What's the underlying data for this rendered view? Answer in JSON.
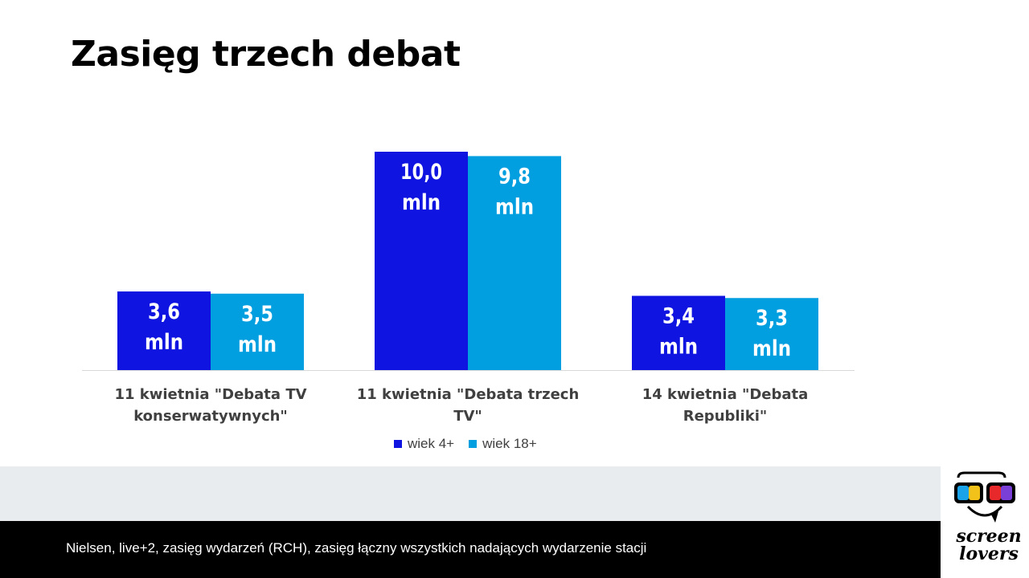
{
  "page": {
    "title": "Zasięg trzech debat",
    "footer": "Nielsen, live+2, zasięg wydarzeń (RCH), zasięg łączny wszystkich nadających wydarzenie stacji",
    "logo": {
      "line1": "screen",
      "line2": "lovers"
    }
  },
  "colors": {
    "series1": "#0f14e0",
    "series2": "#029fe0",
    "bar_label": "#ffffff",
    "axis": "#d9d9d9"
  },
  "chart_data": {
    "type": "bar",
    "categories": [
      "11 kwietnia \"Debata TV konserwatywnych\"",
      "11 kwietnia \"Debata trzech TV\"",
      "14 kwietnia \"Debata Republiki\""
    ],
    "series": [
      {
        "name": "wiek 4+",
        "values": [
          3.6,
          10.0,
          3.4
        ],
        "labels": [
          "3,6",
          "10,0",
          "3,4"
        ]
      },
      {
        "name": "wiek 18+",
        "values": [
          3.5,
          9.8,
          3.3
        ],
        "labels": [
          "3,5",
          "9,8",
          "3,3"
        ]
      }
    ],
    "value_unit": "mln",
    "ylim": [
      0,
      10
    ],
    "grid": false,
    "legend_position": "bottom"
  }
}
